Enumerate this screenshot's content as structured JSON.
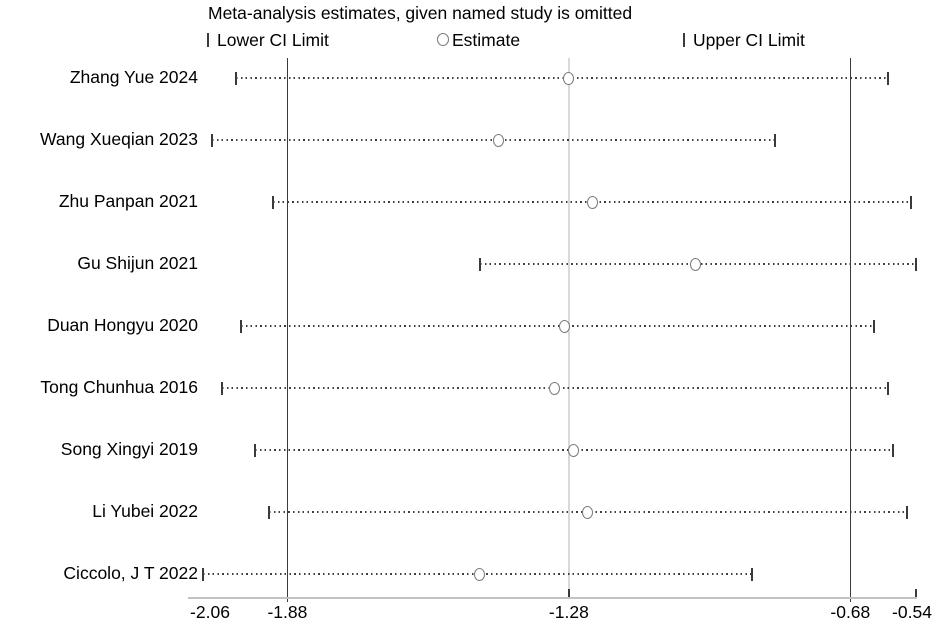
{
  "title": "Meta-analysis estimates, given named study is omitted",
  "legend": {
    "lower_label": "Lower CI Limit",
    "estimate_label": "Estimate",
    "upper_label": "Upper CI Limit"
  },
  "colors": {
    "line": "#3a3a3a",
    "dotted": "#3f3f3f",
    "marker_stroke": "#7a7a7a",
    "faint_line": "#d9d9d9",
    "axis": "#c2c2c2",
    "text": "#000000"
  },
  "chart_data": {
    "type": "scatter",
    "subtype": "leave-one-out-forest",
    "title": "Meta-analysis estimates, given named study is omitted",
    "categories": [
      "Zhang Yue 2024",
      "Wang Xueqian 2023",
      "Zhu Panpan 2021",
      "Gu Shijun 2021",
      "Duan Hongyu 2020",
      "Tong Chunhua 2016",
      "Song Xingyi 2019",
      "Li Yubei 2022",
      "Ciccolo, J T 2022"
    ],
    "series": [
      {
        "name": "Lower CI Limit",
        "values": [
          -1.99,
          -2.04,
          -1.91,
          -1.47,
          -1.98,
          -2.02,
          -1.95,
          -1.92,
          -2.06
        ]
      },
      {
        "name": "Estimate",
        "values": [
          -1.28,
          -1.43,
          -1.23,
          -1.01,
          -1.29,
          -1.31,
          -1.27,
          -1.24,
          -1.47
        ]
      },
      {
        "name": "Upper CI Limit",
        "values": [
          -0.6,
          -0.84,
          -0.55,
          -0.54,
          -0.63,
          -0.6,
          -0.59,
          -0.56,
          -0.89
        ]
      }
    ],
    "overall": {
      "lower": -1.88,
      "estimate": -1.28,
      "upper": -0.68
    },
    "reference_lines": {
      "solid": [
        -1.88,
        -0.68
      ],
      "faint": [
        -1.28
      ]
    },
    "xticks": [
      -2.06,
      -1.88,
      -1.28,
      -0.68,
      -0.54
    ],
    "xtick_labels": [
      "-2.06",
      "-1.88",
      "-1.28",
      "-0.68",
      "-0.54"
    ],
    "xlim": [
      -2.06,
      -0.54
    ],
    "xlabel": "",
    "ylabel": "",
    "grid": false,
    "legend_position": "top"
  }
}
